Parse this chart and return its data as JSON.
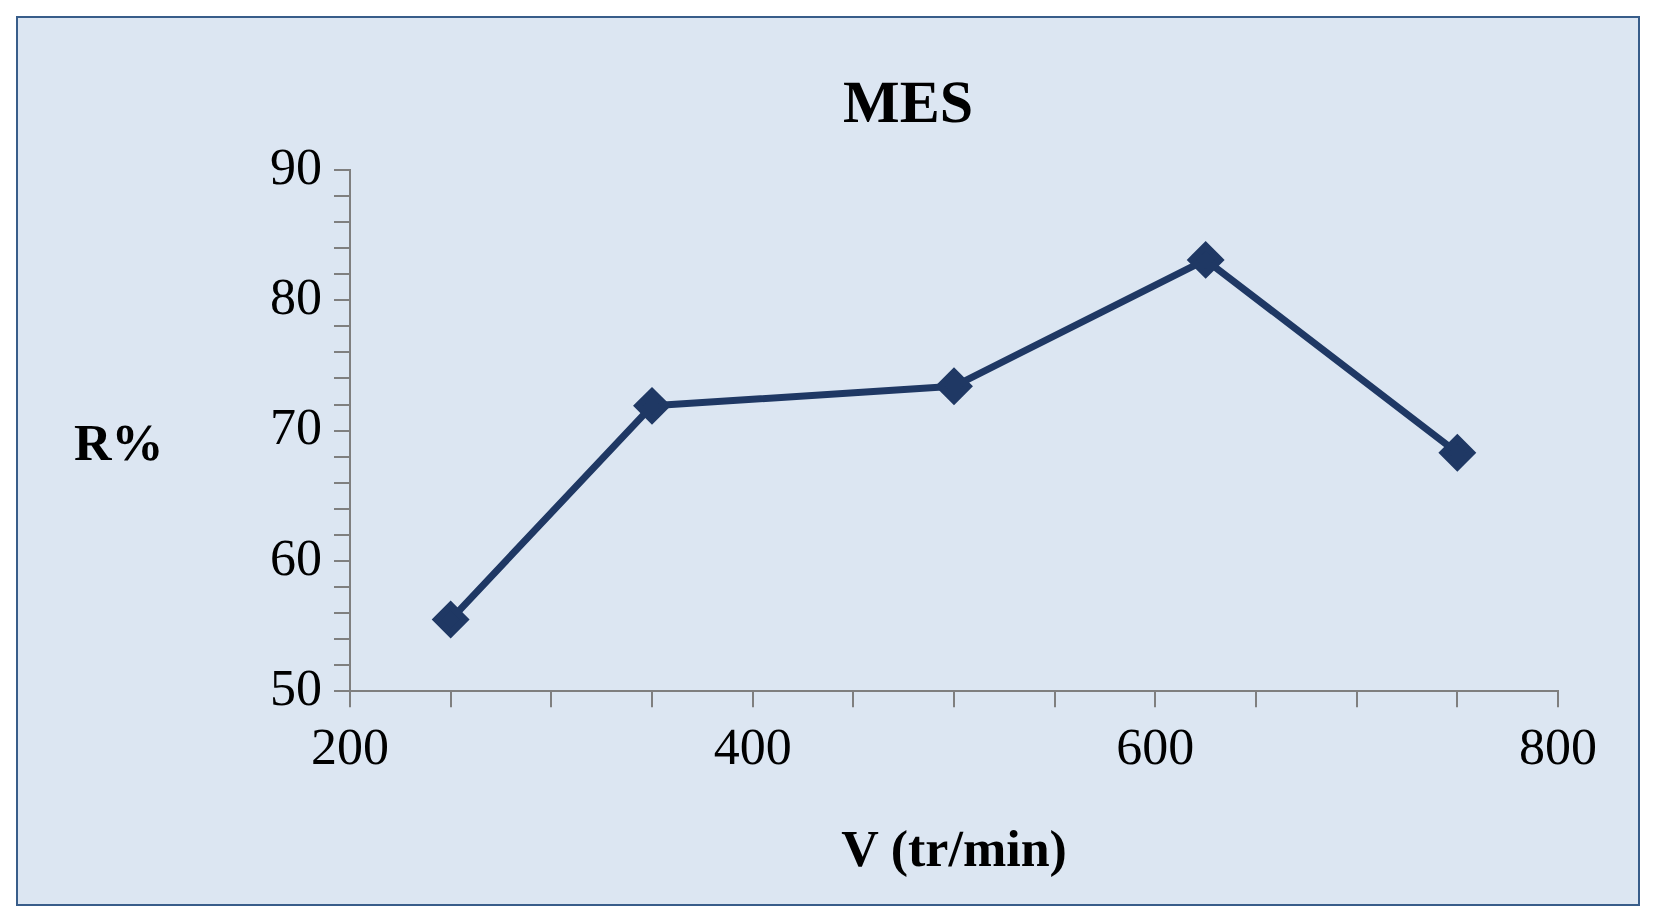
{
  "chart_data": {
    "type": "line",
    "title": "MES",
    "xlabel": "V (tr/min)",
    "ylabel": "R%",
    "x": [
      250,
      350,
      500,
      625,
      750
    ],
    "series": [
      {
        "color": "#1f3864",
        "values": [
          55.5,
          71.9,
          73.4,
          83.1,
          68.3
        ]
      }
    ],
    "xlim": [
      200,
      800
    ],
    "xticks": [
      200,
      {
        "value": 250,
        "label": null
      },
      {
        "value": 300,
        "label": null
      },
      {
        "value": 350,
        "label": null
      },
      400,
      {
        "value": 450,
        "label": null
      },
      {
        "value": 500,
        "label": null
      },
      {
        "value": 550,
        "label": null
      },
      600,
      {
        "value": 650,
        "label": null
      },
      {
        "value": 700,
        "label": null
      },
      {
        "value": 750,
        "label": null
      },
      800
    ],
    "ylim": [
      50,
      90
    ],
    "yticks": [
      50,
      {
        "value": 52,
        "label": null
      },
      {
        "value": 54,
        "label": null
      },
      {
        "value": 56,
        "label": null
      },
      {
        "value": 58,
        "label": null
      },
      60,
      {
        "value": 62,
        "label": null
      },
      {
        "value": 64,
        "label": null
      },
      {
        "value": 66,
        "label": null
      },
      {
        "value": 68,
        "label": null
      },
      70,
      {
        "value": 72,
        "label": null
      },
      {
        "value": 74,
        "label": null
      },
      {
        "value": 76,
        "label": null
      },
      {
        "value": 78,
        "label": null
      },
      80,
      {
        "value": 82,
        "label": null
      },
      {
        "value": 84,
        "label": null
      },
      {
        "value": 86,
        "label": null
      },
      {
        "value": 88,
        "label": null
      },
      90
    ],
    "grid": false,
    "legend": false,
    "marker": "diamond",
    "line_style": "solid"
  }
}
